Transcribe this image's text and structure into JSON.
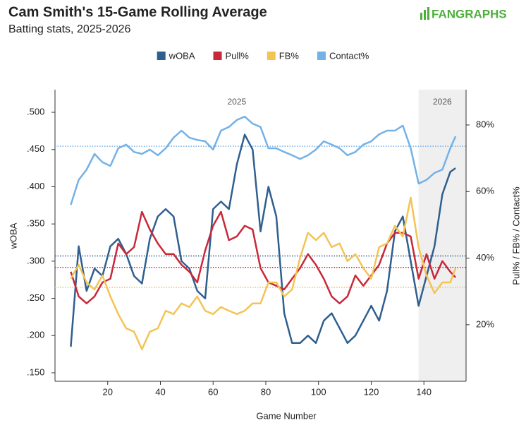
{
  "chart_data": {
    "type": "line",
    "title": "Cam Smith's 15-Game Rolling Average",
    "subtitle": "Batting stats, 2025-2026",
    "logo": "FANGRAPHS",
    "x_label": "Game Number",
    "y_label": "wOBA",
    "y2_label": "Pull% / FB% / Contact%",
    "xlim": [
      0,
      156
    ],
    "xticks": [
      20,
      40,
      60,
      80,
      100,
      120,
      140
    ],
    "ylim": [
      0.1386,
      0.5304
    ],
    "yticks": [
      {
        "value": 0.15,
        "label": ".150"
      },
      {
        "value": 0.2,
        "label": ".200"
      },
      {
        "value": 0.25,
        "label": ".250"
      },
      {
        "value": 0.3,
        "label": ".300"
      },
      {
        "value": 0.35,
        "label": ".350"
      },
      {
        "value": 0.4,
        "label": ".400"
      },
      {
        "value": 0.45,
        "label": ".450"
      },
      {
        "value": 0.5,
        "label": ".500"
      }
    ],
    "y2lim": [
      3,
      90.6
    ],
    "y2ticks": [
      {
        "value": 20,
        "label": "20%"
      },
      {
        "value": 40,
        "label": "40%"
      },
      {
        "value": 60,
        "label": "60%"
      },
      {
        "value": 80,
        "label": "80%"
      }
    ],
    "seasons": [
      {
        "label": "2025",
        "start": 0,
        "end": 138
      },
      {
        "label": "2026",
        "start": 138,
        "end": 156,
        "shaded": true
      }
    ],
    "x": [
      6,
      9,
      12,
      15,
      18,
      21,
      24,
      27,
      30,
      33,
      36,
      39,
      42,
      45,
      48,
      51,
      54,
      57,
      60,
      63,
      66,
      69,
      72,
      75,
      78,
      81,
      84,
      87,
      90,
      93,
      96,
      99,
      102,
      105,
      108,
      111,
      114,
      117,
      120,
      123,
      126,
      129,
      132,
      135,
      138,
      141,
      144,
      147,
      150,
      152
    ],
    "series": [
      {
        "name": "wOBA",
        "color": "#2f5f8f",
        "axis": "y",
        "average": 0.307,
        "values": [
          0.185,
          0.32,
          0.26,
          0.29,
          0.28,
          0.32,
          0.33,
          0.31,
          0.28,
          0.27,
          0.33,
          0.36,
          0.37,
          0.36,
          0.3,
          0.29,
          0.26,
          0.25,
          0.37,
          0.38,
          0.37,
          0.43,
          0.47,
          0.45,
          0.34,
          0.4,
          0.36,
          0.23,
          0.19,
          0.19,
          0.2,
          0.19,
          0.22,
          0.23,
          0.21,
          0.19,
          0.2,
          0.22,
          0.24,
          0.22,
          0.26,
          0.34,
          0.36,
          0.3,
          0.24,
          0.28,
          0.32,
          0.39,
          0.42,
          0.425
        ]
      },
      {
        "name": "Pull%",
        "color": "#c8283a",
        "axis": "y2",
        "average": 37.2,
        "values": [
          35.9,
          28.5,
          26.4,
          28.5,
          32.7,
          33.8,
          44.4,
          41.2,
          43.3,
          53.9,
          48.6,
          44.4,
          41.2,
          41.2,
          38.0,
          35.9,
          32.7,
          42.3,
          49.7,
          53.9,
          45.4,
          46.5,
          49.7,
          48.6,
          37.0,
          32.7,
          31.7,
          30.6,
          33.8,
          37.0,
          41.2,
          38.0,
          33.8,
          28.5,
          26.4,
          28.5,
          34.8,
          31.7,
          34.8,
          38.0,
          44.4,
          47.6,
          47.6,
          46.5,
          33.8,
          41.2,
          33.8,
          39.1,
          35.9,
          34.2
        ]
      },
      {
        "name": "FB%",
        "color": "#f3c454",
        "axis": "y2",
        "average": 31.2,
        "values": [
          33.8,
          38.0,
          32.7,
          30.6,
          34.8,
          28.5,
          23.2,
          18.9,
          17.9,
          12.6,
          17.9,
          18.9,
          24.2,
          23.2,
          26.4,
          25.3,
          28.5,
          24.2,
          23.2,
          25.3,
          24.2,
          23.2,
          24.2,
          26.4,
          26.4,
          32.7,
          32.7,
          28.5,
          30.6,
          40.1,
          47.6,
          45.4,
          47.6,
          43.3,
          44.4,
          39.1,
          41.2,
          37.0,
          33.8,
          43.3,
          44.4,
          49.7,
          46.5,
          58.2,
          43.3,
          34.8,
          29.5,
          32.7,
          32.7,
          37.0
        ]
      },
      {
        "name": "Contact%",
        "color": "#74b1e6",
        "axis": "y2",
        "average": 73.6,
        "values": [
          56.0,
          63.5,
          66.6,
          71.3,
          68.8,
          67.7,
          73.0,
          74.1,
          71.9,
          71.3,
          72.6,
          70.9,
          73.0,
          76.2,
          78.3,
          76.2,
          75.5,
          75.1,
          72.6,
          78.3,
          79.4,
          81.5,
          82.5,
          80.4,
          79.4,
          73.0,
          73.0,
          71.9,
          70.9,
          69.8,
          70.9,
          72.6,
          75.1,
          74.1,
          73.0,
          70.9,
          71.9,
          74.1,
          75.1,
          77.2,
          78.3,
          78.3,
          79.8,
          73.0,
          62.4,
          63.5,
          65.6,
          66.6,
          73.0,
          76.6
        ]
      }
    ]
  }
}
